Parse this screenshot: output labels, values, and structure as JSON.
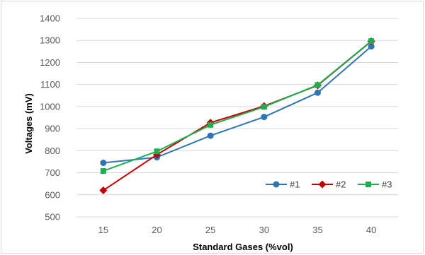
{
  "chart_data": {
    "type": "line",
    "title": "",
    "xlabel": "Standard Gases (%vol)",
    "ylabel": "Voltages (mV)",
    "x": [
      15,
      20,
      25,
      30,
      35,
      40
    ],
    "x_tick_labels": [
      "15",
      "20",
      "25",
      "30",
      "35",
      "40"
    ],
    "ylim": [
      500,
      1400
    ],
    "y_ticks": [
      500,
      600,
      700,
      800,
      900,
      1000,
      1100,
      1200,
      1300,
      1400
    ],
    "grid": "horizontal",
    "legend_position": "bottom-right inside plot",
    "series": [
      {
        "name": "#1",
        "color": "#2e75b6",
        "marker": "circle",
        "values": [
          745,
          770,
          868,
          953,
          1063,
          1273
        ]
      },
      {
        "name": "#2",
        "color": "#c00000",
        "marker": "diamond",
        "values": [
          620,
          782,
          927,
          1002,
          1096,
          1296
        ]
      },
      {
        "name": "#3",
        "color": "#1fae4f",
        "marker": "square",
        "values": [
          708,
          797,
          917,
          999,
          1098,
          1297
        ]
      }
    ]
  }
}
